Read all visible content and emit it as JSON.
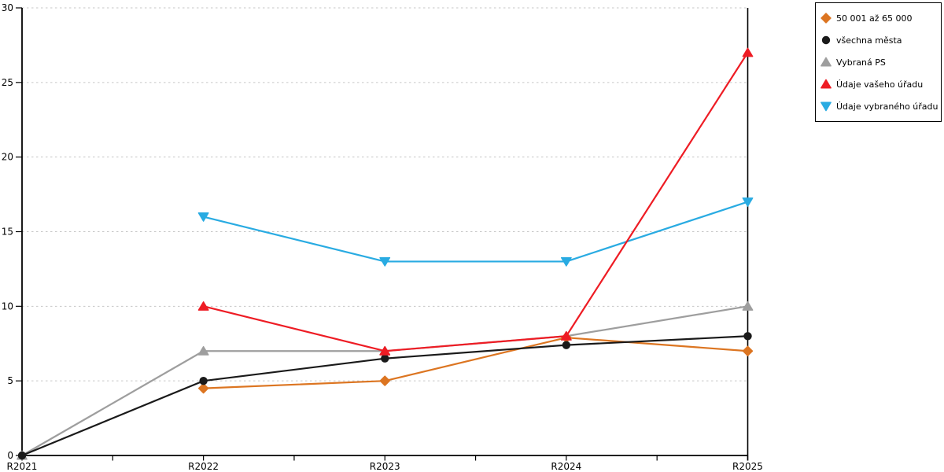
{
  "chart_data": {
    "type": "line",
    "title": "",
    "xlabel": "",
    "ylabel": "",
    "categories": [
      "R2021",
      "R2022",
      "R2023",
      "R2024",
      "R2025"
    ],
    "ylim": [
      0,
      30
    ],
    "ytick_step": 5,
    "y_tick_labels": [
      "0",
      "5",
      "10",
      "15",
      "20",
      "25",
      "30"
    ],
    "grid": "horizontal dashed gridlines at every 5 units",
    "legend_position": "outside top-right, white box with black border",
    "series": [
      {
        "name": "50 001 až 65 000",
        "color": "#DC7521",
        "marker": "diamond",
        "values": [
          null,
          4.5,
          5,
          7.9,
          7
        ]
      },
      {
        "name": "všechna města",
        "color": "#1A1A1A",
        "marker": "circle",
        "values": [
          0,
          5,
          6.5,
          7.4,
          8
        ]
      },
      {
        "name": "Vybraná PS",
        "color": "#9E9E9E",
        "marker": "triangle-up",
        "values": [
          0,
          7,
          7,
          8,
          10
        ]
      },
      {
        "name": "Údaje vašeho úřadu",
        "color": "#EE1C24",
        "marker": "triangle-up",
        "values": [
          null,
          10,
          7,
          8,
          27
        ]
      },
      {
        "name": "Údaje vybraného úřadu",
        "color": "#29ABE2",
        "marker": "triangle-down",
        "values": [
          null,
          16,
          13,
          13,
          17
        ]
      }
    ],
    "z_order": [
      2,
      0,
      1,
      4,
      3
    ],
    "colors": {
      "axis": "#000000",
      "gridline": "#C6C6C6",
      "background": "#FFFFFF"
    }
  }
}
